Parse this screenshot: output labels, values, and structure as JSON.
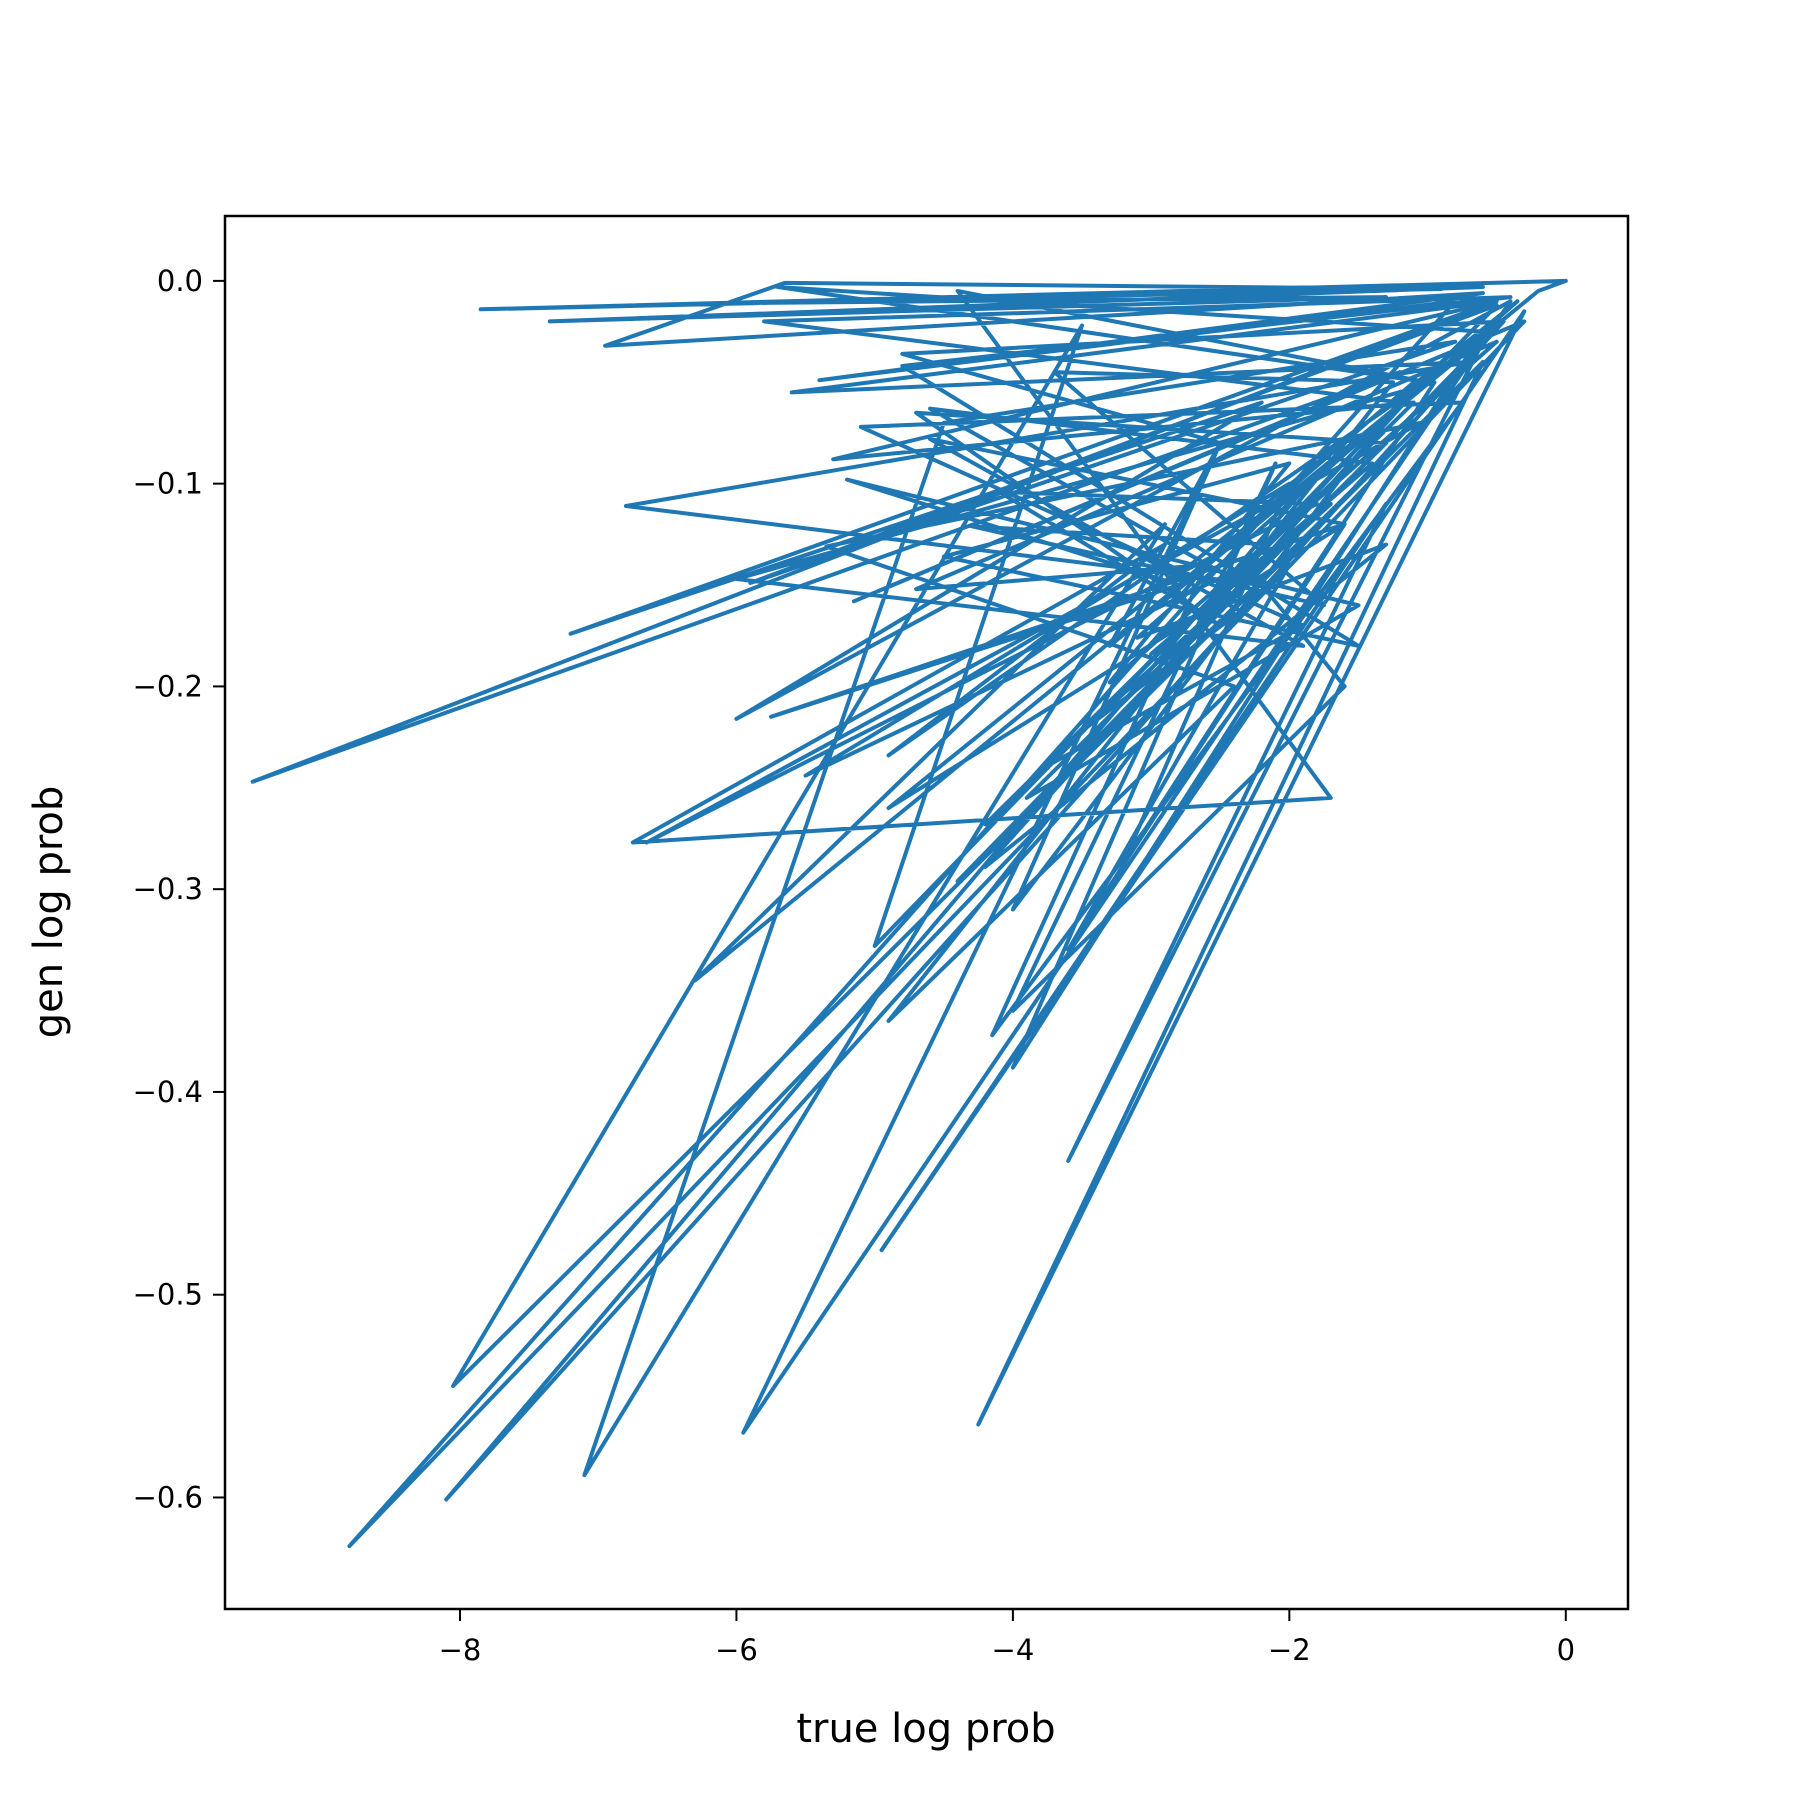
{
  "chart_data": {
    "type": "line",
    "title": "",
    "xlabel": "true log prob",
    "ylabel": "gen log prob",
    "xlim": [
      -9.7,
      0.45
    ],
    "ylim": [
      -0.655,
      0.032
    ],
    "x_ticks": [
      -8,
      -6,
      -4,
      -2,
      0
    ],
    "x_tick_labels": [
      "−8",
      "−6",
      "−4",
      "−2",
      "0"
    ],
    "y_ticks": [
      0.0,
      -0.1,
      -0.2,
      -0.3,
      -0.4,
      -0.5,
      -0.6
    ],
    "y_tick_labels": [
      "0.0",
      "−0.1",
      "−0.2",
      "−0.3",
      "−0.4",
      "−0.5",
      "−0.6"
    ],
    "grid": false,
    "legend": "none",
    "series": [
      {
        "color": "#1f77b4",
        "x": [
          0,
          -7.85,
          -0.6,
          -7.35,
          -1.3,
          -6.05,
          -0.9,
          -5.65,
          -6.95,
          -0.6,
          -5.4,
          -0.8,
          -8.8,
          -0.3,
          -5.15,
          -1.2,
          -9.5,
          -0.5,
          -7.2,
          -2.2,
          -6.0,
          -0.4,
          -5.95,
          -2.5,
          -4.8,
          -0.45,
          -8.1,
          -1.8,
          -6.3,
          -2.9,
          -7.1,
          -4.5,
          -0.8,
          -5.9,
          -0.5,
          -5.0,
          -3.5,
          -8.05,
          -0.6,
          -4.25,
          -0.3,
          -4.95,
          -1.3,
          -3.6,
          -0.6,
          -4.9,
          -2.9,
          -6.75,
          -1.7,
          -4.4,
          -1.0,
          -5.7,
          -0.6,
          -4.0,
          -2.1,
          -4.0,
          -1.6,
          -2.2,
          -6.8,
          -0.7,
          -5.6,
          -0.5,
          -5.3,
          -1.1,
          -4.2,
          -2.3,
          -5.5,
          -2.0,
          -3.2,
          -0.95,
          -6.0,
          -1.9,
          -4.6,
          -1.6,
          -5.75,
          -2.8,
          -5.2,
          -1.5,
          -3.9,
          -1.3,
          -4.7,
          -2.5,
          -4.1,
          -1.8,
          -6.65,
          -1.05,
          -5.35,
          -2.4,
          -4.9,
          -1.25,
          -3.7,
          -1.75,
          -4.3,
          -2.15,
          -1.2,
          -5.8,
          -0.4,
          -4.8,
          -1.5,
          -4.5,
          -2.0,
          -3.3,
          -0.5,
          -4.7,
          -2.6,
          -4.15,
          -0.75,
          -5.1,
          -1.9,
          -3.8,
          -1.7,
          -3.0,
          -1.4,
          -4.6,
          -2.2,
          -3.5,
          -0.9,
          -4.2,
          -1.3,
          -3.1,
          -0.35,
          -4.9,
          -1.6,
          -3.6,
          -2.0,
          -2.9,
          -1.5,
          -4.4,
          -0.45,
          -3.3,
          -2.5,
          -4.0,
          -1.1,
          -2.8,
          -0.2,
          0
        ],
        "y": [
          0,
          -0.014,
          -0.003,
          -0.02,
          -0.008,
          -0.011,
          -0.004,
          -0.001,
          -0.032,
          -0.006,
          -0.049,
          -0.01,
          -0.624,
          -0.02,
          -0.158,
          -0.045,
          -0.247,
          -0.01,
          -0.174,
          -0.06,
          -0.216,
          -0.01,
          -0.568,
          -0.08,
          -0.036,
          -0.02,
          -0.601,
          -0.095,
          -0.345,
          -0.12,
          -0.589,
          -0.07,
          -0.03,
          -0.149,
          -0.012,
          -0.328,
          -0.022,
          -0.545,
          -0.04,
          -0.564,
          -0.015,
          -0.478,
          -0.11,
          -0.434,
          -0.03,
          -0.234,
          -0.13,
          -0.277,
          -0.255,
          -0.005,
          -0.05,
          -0.003,
          -0.025,
          -0.388,
          -0.09,
          -0.36,
          -0.2,
          -0.15,
          -0.111,
          -0.04,
          -0.055,
          -0.01,
          -0.088,
          -0.06,
          -0.268,
          -0.14,
          -0.244,
          -0.1,
          -0.287,
          -0.05,
          -0.147,
          -0.18,
          -0.078,
          -0.12,
          -0.215,
          -0.15,
          -0.098,
          -0.16,
          -0.255,
          -0.08,
          -0.065,
          -0.17,
          -0.104,
          -0.11,
          -0.277,
          -0.07,
          -0.131,
          -0.2,
          -0.365,
          -0.05,
          -0.045,
          -0.16,
          -0.121,
          -0.13,
          -0.06,
          -0.02,
          -0.008,
          -0.042,
          -0.18,
          -0.136,
          -0.09,
          -0.198,
          -0.03,
          -0.152,
          -0.14,
          -0.372,
          -0.06,
          -0.072,
          -0.17,
          -0.241,
          -0.11,
          -0.184,
          -0.09,
          -0.063,
          -0.155,
          -0.222,
          -0.04,
          -0.289,
          -0.13,
          -0.176,
          -0.01,
          -0.26,
          -0.12,
          -0.33,
          -0.14,
          -0.205,
          -0.1,
          -0.296,
          -0.02,
          -0.18,
          -0.08,
          -0.31,
          -0.05,
          -0.15,
          -0.005,
          0
        ]
      }
    ]
  }
}
